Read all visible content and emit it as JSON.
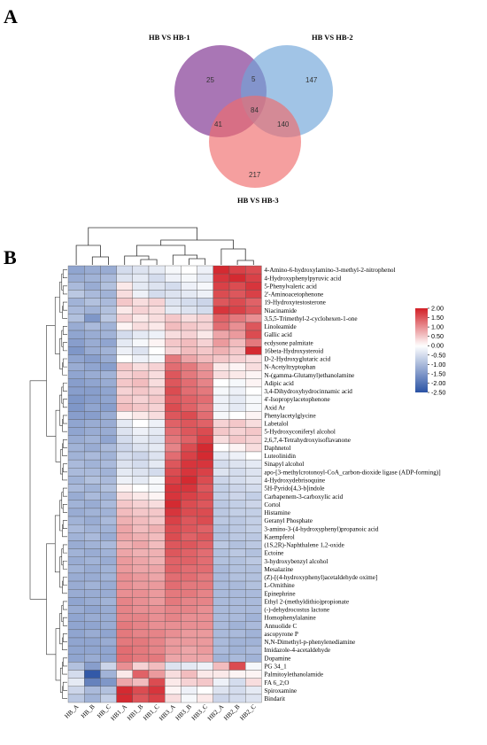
{
  "panels": {
    "a": "A",
    "b": "B"
  },
  "venn": {
    "sets": [
      {
        "label": "HB VS HB-1",
        "color": "#7b2d8e"
      },
      {
        "label": "HB VS HB-2",
        "color": "#6fa5d8"
      },
      {
        "label": "HB VS HB-3",
        "color": "#ef6b6b"
      }
    ],
    "counts": {
      "only_1": "25",
      "only_2": "147",
      "only_3": "217",
      "1_2": "5",
      "1_3": "41",
      "2_3": "140",
      "all": "84"
    }
  },
  "chart_data": {
    "type": "heatmap",
    "columns": [
      "HB_A",
      "HB_B",
      "HB_C",
      "HB1_A",
      "HB1_B",
      "HB1_C",
      "HB3_A",
      "HB3_B",
      "HB3_C",
      "HB2_A",
      "HB2_B",
      "HB2_C"
    ],
    "rows": [
      "4-Amino-6-hydroxylamino-3-methyl-2-nitrophenol",
      "4-Hydroxyphenylpyruvic acid",
      "5-Phenylvaleric acid",
      "2'-Aminoacetophenone",
      "19-Hydroxytestosterone",
      "Niacinamide",
      "3,5,5-Trimethyl-2-cyclohexen-1-one",
      "Linoleamide",
      "Gallic acid",
      "ecdysone palmitate",
      "16beta-Hydroxysteroid",
      "D-2-Hydroxyglutaric acid",
      "N-Acetyltryptophan",
      "N-(gamma-Glutamyl)ethanolamine",
      "Adipic acid",
      "3,4-Dihydroxyhydrocinnamic acid",
      "4'-Isopropylacetophenone",
      "Axid Ar",
      "Phenylacetylglycine",
      "Labetalol",
      "5-Hydroxyconiferyl alcohol",
      "2,6,7,4-Tetrahydroxyisoflavanone",
      "Daphnetol",
      "Luteolinidin",
      "Sinapyl alcohol",
      "apo-[3-methylcrotonoyl-CoA_carbon-dioxide ligase (ADP-forming)]",
      "4-Hydroxydebrisoquine",
      "5H-Pyrido[4,3-b]indole",
      "Carbapenem-3-carboxylic acid",
      "Cortol",
      "Histamine",
      "Geranyl Phosphate",
      "3-amino-3-(4-hydroxyphenyl)propanoic acid",
      "Kaempferol",
      "(1S,2R)-Naphthalene 1,2-oxide",
      "Ectoine",
      "3-hydroxybenzyl alcohol",
      "Mesalazine",
      "(Z)-[(4-hydroxyphenyl)acetaldehyde oxime]",
      "L-Ornithine",
      "Epinephrine",
      "Ethyl 2-(methyldithio)propionate",
      "(-)-dehydrocostus lactone",
      "Homophenylalanine",
      "Annuolide C",
      "ascopyrone P",
      "N,N-Dimethyl-p-phenylenediamine",
      "Imidazole-4-acetaldehyde",
      "Dopamine",
      "PG 34_1",
      "Palmitoylethanolamide",
      "FA 6_2;O",
      "Spiroxamine",
      "Bindarit"
    ],
    "values": [
      [
        -1.3,
        -1.2,
        -1.2,
        -0.5,
        -0.4,
        -0.3,
        -0.1,
        0.0,
        -0.2,
        1.9,
        1.7,
        1.6
      ],
      [
        -1.2,
        -1.1,
        -1.0,
        -0.4,
        -0.3,
        -0.5,
        -0.2,
        -0.1,
        -0.3,
        1.8,
        1.9,
        1.7
      ],
      [
        -1.0,
        -1.2,
        -0.9,
        0.2,
        -0.3,
        -0.4,
        -0.5,
        -0.2,
        -0.1,
        1.7,
        1.6,
        1.8
      ],
      [
        -0.8,
        -1.0,
        -1.1,
        0.3,
        -0.2,
        -0.5,
        -0.4,
        -0.3,
        -0.2,
        1.6,
        1.5,
        1.7
      ],
      [
        -1.1,
        -0.9,
        -1.0,
        0.5,
        0.3,
        0.4,
        -0.4,
        -0.5,
        -0.6,
        1.5,
        1.6,
        1.4
      ],
      [
        -1.0,
        -1.1,
        -0.9,
        0.2,
        0.4,
        0.3,
        -0.3,
        -0.4,
        -0.5,
        1.8,
        1.7,
        1.5
      ],
      [
        -0.9,
        -1.5,
        -0.8,
        0.4,
        0.2,
        0.3,
        0.5,
        0.3,
        0.4,
        1.4,
        1.2,
        1.0
      ],
      [
        -1.2,
        -1.0,
        -1.1,
        0.1,
        0.3,
        0.2,
        0.6,
        0.5,
        0.4,
        1.3,
        1.0,
        1.5
      ],
      [
        -1.3,
        -1.2,
        -1.1,
        -0.5,
        -0.3,
        -0.2,
        0.3,
        0.4,
        0.2,
        0.8,
        0.9,
        1.6
      ],
      [
        -1.4,
        -1.2,
        -1.3,
        -0.3,
        -0.1,
        0.1,
        0.5,
        0.6,
        0.4,
        0.9,
        0.6,
        1.2
      ],
      [
        -1.5,
        -1.2,
        -1.1,
        -0.2,
        -0.4,
        0.0,
        0.4,
        0.6,
        0.5,
        0.7,
        0.5,
        1.9
      ],
      [
        -1.3,
        -1.4,
        -1.2,
        0.0,
        -0.2,
        -0.1,
        1.2,
        0.8,
        0.6,
        0.5,
        0.4,
        0.3
      ],
      [
        -1.2,
        -1.3,
        -1.4,
        0.5,
        0.3,
        0.4,
        1.3,
        1.2,
        0.9,
        0.2,
        0.1,
        0.3
      ],
      [
        -1.3,
        -1.2,
        -1.1,
        0.4,
        0.5,
        0.3,
        1.5,
        1.2,
        1.0,
        0.3,
        0.2,
        0.1
      ],
      [
        -1.4,
        -1.3,
        -1.2,
        0.5,
        0.6,
        0.3,
        1.5,
        1.3,
        1.1,
        0.0,
        -0.1,
        0.1
      ],
      [
        -1.4,
        -1.4,
        -1.3,
        0.4,
        0.5,
        0.4,
        1.6,
        1.3,
        1.2,
        -0.1,
        -0.2,
        0.0
      ],
      [
        -1.5,
        -1.4,
        -1.3,
        0.5,
        0.4,
        0.5,
        1.5,
        1.4,
        1.3,
        -0.2,
        -0.3,
        -0.1
      ],
      [
        -1.5,
        -1.3,
        -1.4,
        0.6,
        0.5,
        0.4,
        1.6,
        1.4,
        1.2,
        -0.2,
        -0.3,
        -0.1
      ],
      [
        -1.4,
        -1.4,
        -1.2,
        0.1,
        0.2,
        0.3,
        1.5,
        1.6,
        1.3,
        -0.1,
        0.0,
        0.1
      ],
      [
        -1.3,
        -1.2,
        -1.2,
        -0.3,
        0.0,
        -0.2,
        1.4,
        1.5,
        1.4,
        0.4,
        0.5,
        0.3
      ],
      [
        -1.3,
        -1.2,
        -1.2,
        -0.4,
        -0.2,
        -0.3,
        1.3,
        1.5,
        1.6,
        0.5,
        0.4,
        0.5
      ],
      [
        -1.2,
        -1.1,
        -1.3,
        -0.5,
        -0.3,
        -0.4,
        1.2,
        1.4,
        1.7,
        0.3,
        0.5,
        0.4
      ],
      [
        -1.1,
        -1.2,
        -1.0,
        -0.6,
        -0.4,
        -0.3,
        1.1,
        1.6,
        1.9,
        0.0,
        0.1,
        0.3
      ],
      [
        -1.1,
        -1.0,
        -1.1,
        -0.5,
        -0.6,
        -0.4,
        1.3,
        1.7,
        1.9,
        -0.3,
        -0.2,
        0.0
      ],
      [
        -1.0,
        -1.1,
        -1.0,
        -0.4,
        -0.5,
        -0.3,
        1.5,
        1.8,
        1.8,
        -0.5,
        -0.4,
        -0.3
      ],
      [
        -1.0,
        -1.0,
        -1.1,
        -0.3,
        -0.4,
        -0.5,
        1.6,
        1.8,
        1.7,
        -0.4,
        -0.5,
        -0.4
      ],
      [
        -1.1,
        -0.9,
        -1.0,
        -0.2,
        -0.3,
        -0.1,
        1.7,
        1.9,
        1.6,
        -0.6,
        -0.5,
        -0.4
      ],
      [
        -1.0,
        -1.1,
        -0.9,
        0.1,
        0.0,
        -0.1,
        1.8,
        1.8,
        1.5,
        -0.7,
        -0.6,
        -0.5
      ],
      [
        -1.2,
        -1.0,
        -1.1,
        0.3,
        0.2,
        0.1,
        1.8,
        1.7,
        1.6,
        -0.7,
        -0.6,
        -0.7
      ],
      [
        -1.1,
        -1.2,
        -1.0,
        0.5,
        0.4,
        0.3,
        1.9,
        1.6,
        1.5,
        -0.8,
        -0.7,
        -0.6
      ],
      [
        -1.2,
        -1.1,
        -1.1,
        0.6,
        0.5,
        0.5,
        1.8,
        1.6,
        1.6,
        -0.8,
        -0.7,
        -0.7
      ],
      [
        -1.1,
        -1.2,
        -1.0,
        0.7,
        0.6,
        0.5,
        1.7,
        1.5,
        1.6,
        -0.8,
        -0.8,
        -0.7
      ],
      [
        -1.0,
        -1.1,
        -1.1,
        0.8,
        0.6,
        0.7,
        1.6,
        1.5,
        1.4,
        -0.9,
        -0.8,
        -0.7
      ],
      [
        -1.1,
        -1.0,
        -1.2,
        0.8,
        0.7,
        0.6,
        1.6,
        1.4,
        1.5,
        -0.9,
        -0.8,
        -0.8
      ],
      [
        -1.2,
        -1.1,
        -1.0,
        0.7,
        0.8,
        0.6,
        1.5,
        1.5,
        1.4,
        -0.8,
        -0.9,
        -0.8
      ],
      [
        -1.1,
        -1.2,
        -1.1,
        0.8,
        0.7,
        0.7,
        1.5,
        1.4,
        1.3,
        -0.9,
        -0.8,
        -0.9
      ],
      [
        -1.2,
        -1.1,
        -1.2,
        0.9,
        0.8,
        0.7,
        1.4,
        1.4,
        1.3,
        -0.9,
        -0.9,
        -0.8
      ],
      [
        -1.1,
        -1.2,
        -1.1,
        0.9,
        0.8,
        0.8,
        1.4,
        1.3,
        1.3,
        -1.0,
        -0.9,
        -0.9
      ],
      [
        -1.2,
        -1.2,
        -1.1,
        1.0,
        0.9,
        0.8,
        1.3,
        1.3,
        1.2,
        -1.0,
        -0.9,
        -0.9
      ],
      [
        -1.2,
        -1.1,
        -1.2,
        1.0,
        0.9,
        0.9,
        1.3,
        1.2,
        1.2,
        -1.0,
        -1.0,
        -0.9
      ],
      [
        -1.2,
        -1.2,
        -1.2,
        1.0,
        1.0,
        0.9,
        1.2,
        1.2,
        1.1,
        -1.0,
        -1.0,
        -1.0
      ],
      [
        -1.3,
        -1.2,
        -1.1,
        1.1,
        1.0,
        0.9,
        1.2,
        1.1,
        1.1,
        -1.0,
        -1.0,
        -1.0
      ],
      [
        -1.2,
        -1.3,
        -1.2,
        1.1,
        1.0,
        1.0,
        1.1,
        1.1,
        1.0,
        -1.0,
        -1.0,
        -1.0
      ],
      [
        -1.3,
        -1.2,
        -1.2,
        1.1,
        1.1,
        1.0,
        1.1,
        1.0,
        1.0,
        -1.0,
        -1.0,
        -1.1
      ],
      [
        -1.3,
        -1.3,
        -1.2,
        1.2,
        1.1,
        1.0,
        1.0,
        1.0,
        1.0,
        -1.0,
        -1.1,
        -1.0
      ],
      [
        -1.3,
        -1.2,
        -1.3,
        1.2,
        1.1,
        1.1,
        1.0,
        0.9,
        0.9,
        -1.0,
        -1.0,
        -1.1
      ],
      [
        -1.3,
        -1.3,
        -1.2,
        1.2,
        1.2,
        1.1,
        0.9,
        0.9,
        0.9,
        -1.0,
        -1.1,
        -1.1
      ],
      [
        -1.3,
        -1.3,
        -1.3,
        1.3,
        1.2,
        1.1,
        0.9,
        0.8,
        0.9,
        -1.0,
        -1.1,
        -1.0
      ],
      [
        -1.3,
        -1.2,
        -1.3,
        1.3,
        1.2,
        1.2,
        0.8,
        0.8,
        0.8,
        -1.1,
        -1.0,
        -1.1
      ],
      [
        -0.9,
        -1.4,
        -0.6,
        1.0,
        0.4,
        0.6,
        -0.4,
        -0.3,
        -0.2,
        0.6,
        1.6,
        -0.1
      ],
      [
        -0.5,
        -2.4,
        -1.1,
        0.2,
        1.4,
        0.9,
        0.3,
        0.6,
        0.2,
        0.2,
        0.1,
        0.1
      ],
      [
        -0.3,
        -1.8,
        -1.5,
        0.8,
        0.6,
        1.6,
        0.2,
        0.4,
        0.5,
        -0.2,
        -0.5,
        0.3
      ],
      [
        -0.6,
        -1.0,
        -0.9,
        1.9,
        1.6,
        1.8,
        0.1,
        -0.2,
        0.0,
        -0.4,
        -0.5,
        -0.3
      ],
      [
        -0.8,
        -1.1,
        -0.7,
        1.9,
        1.5,
        1.7,
        0.3,
        -0.1,
        0.2,
        -0.6,
        -0.5,
        -0.4
      ]
    ],
    "color_scale": {
      "min": -2.5,
      "max": 2.0,
      "low_color": "#2a52a4",
      "mid_color": "#ffffff",
      "high_color": "#d21f26",
      "ticks": [
        "2.00",
        "1.50",
        "1.00",
        "0.50",
        "0.00",
        "-0.50",
        "-1.00",
        "-1.50",
        "-2.00",
        "-2.50"
      ]
    }
  }
}
